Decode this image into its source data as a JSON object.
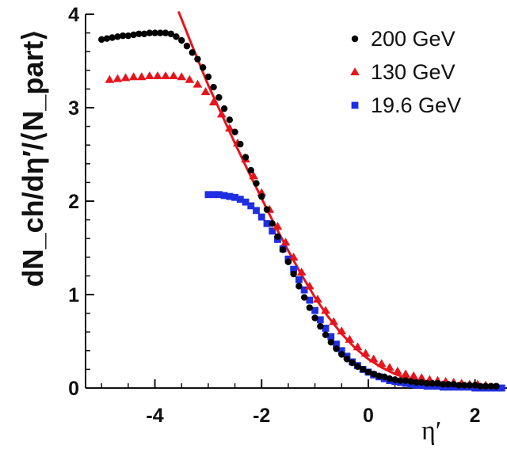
{
  "chart_data": {
    "type": "scatter",
    "xlabel": "η′",
    "ylabel": "dN_ch/dη′/⟨N_part⟩",
    "xlim": [
      -5.3,
      2.6
    ],
    "ylim": [
      0,
      4
    ],
    "x_ticks": [
      -4,
      -2,
      0,
      2
    ],
    "y_ticks": [
      0,
      1,
      2,
      3,
      4
    ],
    "grid": false,
    "legend_position": "top-right",
    "series": [
      {
        "name": "200 GeV",
        "marker": "circle",
        "color": "#000000",
        "x": [
          -5.0,
          -4.9,
          -4.8,
          -4.7,
          -4.6,
          -4.5,
          -4.4,
          -4.3,
          -4.2,
          -4.1,
          -4.0,
          -3.9,
          -3.8,
          -3.7,
          -3.6,
          -3.5,
          -3.4,
          -3.3,
          -3.2,
          -3.1,
          -3.0,
          -2.9,
          -2.8,
          -2.7,
          -2.6,
          -2.5,
          -2.4,
          -2.3,
          -2.2,
          -2.1,
          -2.0,
          -1.9,
          -1.8,
          -1.7,
          -1.6,
          -1.5,
          -1.4,
          -1.3,
          -1.2,
          -1.1,
          -1.0,
          -0.9,
          -0.8,
          -0.7,
          -0.6,
          -0.5,
          -0.4,
          -0.3,
          -0.2,
          -0.1,
          0.0,
          0.1,
          0.2,
          0.3,
          0.4,
          0.5,
          0.6,
          0.7,
          0.8,
          0.9,
          1.0,
          1.1,
          1.2,
          1.3,
          1.4,
          1.5,
          1.6,
          1.7,
          1.8,
          1.9,
          2.0,
          2.1,
          2.2,
          2.3,
          2.4
        ],
        "y": [
          3.73,
          3.74,
          3.75,
          3.76,
          3.77,
          3.77,
          3.78,
          3.79,
          3.79,
          3.8,
          3.8,
          3.8,
          3.8,
          3.79,
          3.76,
          3.72,
          3.66,
          3.59,
          3.52,
          3.43,
          3.33,
          3.22,
          3.11,
          2.99,
          2.87,
          2.74,
          2.61,
          2.47,
          2.33,
          2.19,
          2.05,
          1.91,
          1.76,
          1.62,
          1.48,
          1.35,
          1.22,
          1.09,
          0.97,
          0.86,
          0.75,
          0.66,
          0.57,
          0.49,
          0.42,
          0.36,
          0.31,
          0.27,
          0.23,
          0.2,
          0.17,
          0.15,
          0.13,
          0.12,
          0.1,
          0.09,
          0.08,
          0.08,
          0.07,
          0.06,
          0.06,
          0.05,
          0.05,
          0.05,
          0.04,
          0.04,
          0.04,
          0.03,
          0.03,
          0.03,
          0.03,
          0.02,
          0.02,
          0.02,
          0.02
        ]
      },
      {
        "name": "130 GeV",
        "marker": "triangle",
        "color": "#e8141c",
        "x": [
          -4.85,
          -4.7,
          -4.55,
          -4.4,
          -4.25,
          -4.1,
          -3.95,
          -3.8,
          -3.65,
          -3.5,
          -3.35,
          -3.2,
          -3.05,
          -2.9,
          -2.75,
          -2.6,
          -2.45,
          -2.3,
          -2.15,
          -2.0,
          -1.85,
          -1.7,
          -1.55,
          -1.4,
          -1.25,
          -1.1,
          -0.95,
          -0.8,
          -0.65,
          -0.5,
          -0.35,
          -0.2,
          -0.05,
          0.1,
          0.25,
          0.4,
          0.55,
          0.7,
          0.85,
          1.0,
          1.15,
          1.3,
          1.45,
          1.6,
          1.75,
          1.9,
          2.05,
          2.2
        ],
        "y": [
          3.3,
          3.31,
          3.32,
          3.33,
          3.33,
          3.34,
          3.34,
          3.34,
          3.34,
          3.33,
          3.3,
          3.25,
          3.17,
          3.06,
          2.93,
          2.78,
          2.62,
          2.45,
          2.27,
          2.09,
          1.91,
          1.73,
          1.56,
          1.4,
          1.24,
          1.09,
          0.95,
          0.83,
          0.71,
          0.61,
          0.52,
          0.44,
          0.37,
          0.31,
          0.26,
          0.22,
          0.18,
          0.15,
          0.13,
          0.11,
          0.09,
          0.08,
          0.07,
          0.06,
          0.05,
          0.04,
          0.04,
          0.03
        ]
      },
      {
        "name": "19.6 GeV",
        "marker": "square",
        "color": "#1f2ee0",
        "x": [
          -3.0,
          -2.9,
          -2.8,
          -2.7,
          -2.6,
          -2.5,
          -2.4,
          -2.3,
          -2.2,
          -2.1,
          -2.0,
          -1.9,
          -1.8,
          -1.7,
          -1.6,
          -1.5,
          -1.4,
          -1.3,
          -1.2,
          -1.1,
          -1.0,
          -0.9,
          -0.8,
          -0.7,
          -0.6,
          -0.5,
          -0.4,
          -0.3,
          -0.2,
          -0.1,
          0.0,
          0.1,
          0.2,
          0.3,
          0.4,
          0.5,
          0.6,
          0.7,
          0.8,
          0.9,
          1.0,
          1.1,
          1.2,
          1.3,
          1.4,
          1.5,
          1.6,
          1.7,
          1.8,
          1.9,
          2.0,
          2.1,
          2.2,
          2.3,
          2.4,
          2.5
        ],
        "y": [
          2.07,
          2.07,
          2.07,
          2.06,
          2.05,
          2.04,
          2.02,
          1.99,
          1.95,
          1.9,
          1.83,
          1.76,
          1.68,
          1.59,
          1.49,
          1.38,
          1.27,
          1.16,
          1.05,
          0.94,
          0.83,
          0.73,
          0.64,
          0.55,
          0.47,
          0.4,
          0.34,
          0.28,
          0.24,
          0.2,
          0.17,
          0.14,
          0.12,
          0.1,
          0.08,
          0.07,
          0.06,
          0.05,
          0.04,
          0.03,
          0.03,
          0.02,
          0.02,
          0.02,
          0.01,
          0.01,
          0.01,
          0.01,
          0.01,
          0.01,
          0.0,
          0.0,
          0.0,
          0.0,
          0.0,
          0.0
        ]
      }
    ],
    "fit_line": {
      "color": "#e8141c",
      "x": [
        -3.55,
        -3.3,
        -3.0,
        -2.75,
        -2.5,
        -2.25,
        -2.0,
        -1.75,
        -1.5,
        -1.25,
        -1.0,
        -0.75,
        -0.5,
        -0.25,
        0.0,
        0.25,
        0.5,
        0.75,
        1.0,
        1.25,
        1.5,
        1.75,
        2.0,
        2.25,
        2.5
      ],
      "y": [
        4.02,
        3.66,
        3.24,
        2.93,
        2.62,
        2.32,
        2.03,
        1.74,
        1.47,
        1.21,
        0.97,
        0.76,
        0.58,
        0.43,
        0.31,
        0.22,
        0.15,
        0.1,
        0.07,
        0.05,
        0.04,
        0.03,
        0.02,
        0.01,
        0.01
      ]
    }
  }
}
